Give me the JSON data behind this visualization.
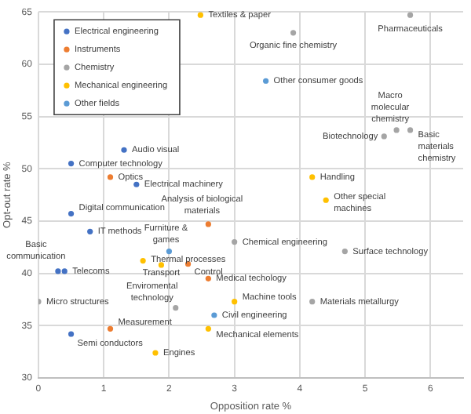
{
  "chart_data": {
    "type": "scatter",
    "xlabel": "Opposition rate %",
    "ylabel": "Opt-out rate %",
    "xlim": [
      0,
      6.5
    ],
    "xticks": [
      0,
      1,
      2,
      3,
      4,
      5,
      6
    ],
    "ylim": [
      30,
      65
    ],
    "yticks": [
      30,
      35,
      40,
      45,
      50,
      55,
      60,
      65
    ],
    "grid": true,
    "legend": "top left",
    "marker": "circle",
    "series": [
      {
        "name": "Electrical engineering",
        "color": "#4472c4",
        "x": [
          1.31,
          0.5,
          1.5,
          0.5,
          0.79,
          0.3,
          0.4,
          0.5
        ],
        "values": [
          51.8,
          50.5,
          48.5,
          45.7,
          44.0,
          40.2,
          40.2,
          34.2
        ]
      },
      {
        "name": "Instruments",
        "color": "#ed7d31",
        "x": [
          1.1,
          2.6,
          2.29,
          2.6,
          1.1
        ],
        "values": [
          49.2,
          44.7,
          40.9,
          39.5,
          34.7
        ]
      },
      {
        "name": "Chemistry",
        "color": "#a5a5a5",
        "x": [
          5.69,
          3.9,
          5.48,
          5.29,
          5.69,
          3.0,
          4.69,
          4.19,
          0.0,
          2.1
        ],
        "values": [
          64.7,
          63.0,
          53.7,
          53.1,
          53.7,
          43.0,
          42.1,
          37.3,
          37.3,
          36.7
        ]
      },
      {
        "name": "Mechanical engineering",
        "color": "#ffc000",
        "x": [
          2.48,
          4.19,
          4.4,
          1.6,
          1.88,
          3.0,
          2.6,
          1.79
        ],
        "values": [
          64.7,
          49.2,
          47.0,
          41.2,
          40.8,
          37.3,
          34.7,
          32.4
        ]
      },
      {
        "name": "Other fields",
        "color": "#5b9bd5",
        "x": [
          3.48,
          2.0,
          2.69
        ],
        "values": [
          58.4,
          42.1,
          36.0
        ]
      }
    ],
    "annotations": [
      {
        "text": "Textiles & paper",
        "x": 2.48,
        "y": 64.7
      },
      {
        "text": "Pharmaceuticals",
        "x": 5.69,
        "y": 64.7
      },
      {
        "text": "Organic fine chemistry",
        "x": 3.9,
        "y": 63.0
      },
      {
        "text": "Other consumer goods",
        "x": 3.48,
        "y": 58.4
      },
      {
        "text": "Macro molecular chemistry",
        "x": 5.48,
        "y": 53.7
      },
      {
        "text": "Biotechnology",
        "x": 5.29,
        "y": 53.1
      },
      {
        "text": "Basic materials chemistry",
        "x": 5.69,
        "y": 53.7
      },
      {
        "text": "Audio visual",
        "x": 1.31,
        "y": 51.8
      },
      {
        "text": "Computer technology",
        "x": 0.5,
        "y": 50.5
      },
      {
        "text": "Optics",
        "x": 1.1,
        "y": 49.2
      },
      {
        "text": "Handling",
        "x": 4.19,
        "y": 49.2
      },
      {
        "text": "Electrical machinery",
        "x": 1.5,
        "y": 48.5
      },
      {
        "text": "Other special machines",
        "x": 4.4,
        "y": 47.0
      },
      {
        "text": "Analysis of biological materials",
        "x": 2.6,
        "y": 44.7
      },
      {
        "text": "Digital communication",
        "x": 0.5,
        "y": 45.7
      },
      {
        "text": "IT methods",
        "x": 0.79,
        "y": 44.0
      },
      {
        "text": "Basic communication",
        "x": 0.3,
        "y": 40.2
      },
      {
        "text": "Telecoms",
        "x": 0.4,
        "y": 40.2
      },
      {
        "text": "Furniture & games",
        "x": 2.0,
        "y": 42.1
      },
      {
        "text": "Chemical engineering",
        "x": 3.0,
        "y": 43.0
      },
      {
        "text": "Surface technology",
        "x": 4.69,
        "y": 42.1
      },
      {
        "text": "Thermal processes",
        "x": 1.6,
        "y": 41.2
      },
      {
        "text": "Transport",
        "x": 1.88,
        "y": 40.8
      },
      {
        "text": "Control",
        "x": 2.29,
        "y": 40.9
      },
      {
        "text": "Medical techology",
        "x": 2.6,
        "y": 39.5
      },
      {
        "text": "Micro structures",
        "x": 0.0,
        "y": 37.3
      },
      {
        "text": "Enviromental technology",
        "x": 2.1,
        "y": 36.7
      },
      {
        "text": "Materials metallurgy",
        "x": 4.19,
        "y": 37.3
      },
      {
        "text": "Machine tools",
        "x": 3.0,
        "y": 37.3
      },
      {
        "text": "Civil engineering",
        "x": 2.69,
        "y": 36.0
      },
      {
        "text": "Measurement",
        "x": 1.1,
        "y": 34.7
      },
      {
        "text": "Semi conductors",
        "x": 0.5,
        "y": 34.2
      },
      {
        "text": "Mechanical elements",
        "x": 2.6,
        "y": 34.7
      },
      {
        "text": "Engines",
        "x": 1.79,
        "y": 32.4
      }
    ]
  }
}
